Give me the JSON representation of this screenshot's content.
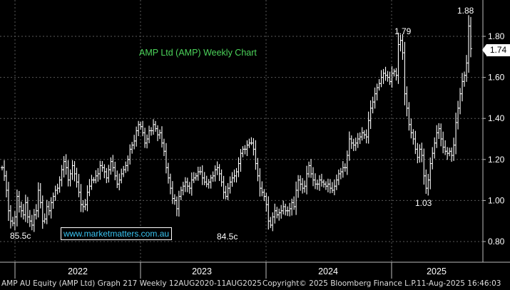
{
  "chart_data": {
    "type": "candlestick",
    "title": "AMP Ltd (AMP) Weekly Chart",
    "x_labels": [
      "2022",
      "2023",
      "2024",
      "2025"
    ],
    "y_ticks": [
      "0.80",
      "1.00",
      "1.20",
      "1.40",
      "1.60",
      "1.80"
    ],
    "ylim": [
      0.74,
      1.94
    ],
    "grid": true,
    "last_price": "1.74",
    "annotations": [
      "85.5c",
      "84.5c",
      "1.79",
      "1.03",
      "1.88"
    ],
    "weekly_closes": [
      1.16,
      1.12,
      1.05,
      0.95,
      0.9,
      0.89,
      0.92,
      1.02,
      0.97,
      0.95,
      0.93,
      0.99,
      0.92,
      0.9,
      0.88,
      0.93,
      0.95,
      1.05,
      0.99,
      0.9,
      0.91,
      0.97,
      0.95,
      0.99,
      1.02,
      1.05,
      1.06,
      1.1,
      1.15,
      1.19,
      1.16,
      1.1,
      1.13,
      1.17,
      1.13,
      1.09,
      1.04,
      0.98,
      0.97,
      0.98,
      1.04,
      1.07,
      1.1,
      1.1,
      1.12,
      1.13,
      1.17,
      1.16,
      1.14,
      1.11,
      1.15,
      1.19,
      1.16,
      1.12,
      1.08,
      1.1,
      1.13,
      1.15,
      1.17,
      1.2,
      1.25,
      1.27,
      1.29,
      1.34,
      1.37,
      1.36,
      1.33,
      1.28,
      1.3,
      1.34,
      1.34,
      1.37,
      1.35,
      1.32,
      1.33,
      1.28,
      1.24,
      1.16,
      1.11,
      1.06,
      1.01,
      1.0,
      0.96,
      1.02,
      1.05,
      1.07,
      1.09,
      1.07,
      1.06,
      1.1,
      1.11,
      1.12,
      1.14,
      1.14,
      1.11,
      1.09,
      1.08,
      1.09,
      1.11,
      1.12,
      1.15,
      1.16,
      1.13,
      1.09,
      1.04,
      1.02,
      1.06,
      1.09,
      1.11,
      1.12,
      1.14,
      1.18,
      1.23,
      1.25,
      1.25,
      1.27,
      1.28,
      1.28,
      1.25,
      1.18,
      1.12,
      1.06,
      1.04,
      1.02,
      0.98,
      0.9,
      0.88,
      0.92,
      0.95,
      0.93,
      0.94,
      0.95,
      0.97,
      0.95,
      0.95,
      0.96,
      0.99,
      0.97,
      1.05,
      1.1,
      1.08,
      1.06,
      1.07,
      1.13,
      1.17,
      1.13,
      1.1,
      1.08,
      1.08,
      1.1,
      1.09,
      1.08,
      1.07,
      1.08,
      1.06,
      1.05,
      1.07,
      1.1,
      1.13,
      1.14,
      1.16,
      1.16,
      1.22,
      1.3,
      1.28,
      1.27,
      1.28,
      1.3,
      1.31,
      1.33,
      1.32,
      1.31,
      1.39,
      1.45,
      1.48,
      1.52,
      1.55,
      1.57,
      1.6,
      1.62,
      1.61,
      1.6,
      1.58,
      1.62,
      1.63,
      1.61,
      1.76,
      1.78,
      1.72,
      1.52,
      1.45,
      1.37,
      1.33,
      1.3,
      1.25,
      1.21,
      1.25,
      1.22,
      1.12,
      1.06,
      1.1,
      1.18,
      1.23,
      1.28,
      1.33,
      1.35,
      1.3,
      1.26,
      1.24,
      1.23,
      1.24,
      1.22,
      1.27,
      1.38,
      1.45,
      1.52,
      1.58,
      1.61,
      1.67,
      1.85,
      1.74
    ]
  },
  "footer": {
    "left": "AMP AU Equity (AMP Ltd) Graph 217  Weekly 12AUG2020-11AUG2025",
    "center": "Copyright© 2025 Bloomberg Finance L.P.",
    "right": "11-Aug-2025 16:46:03"
  },
  "watermark": "www.marketmatters.com.au"
}
